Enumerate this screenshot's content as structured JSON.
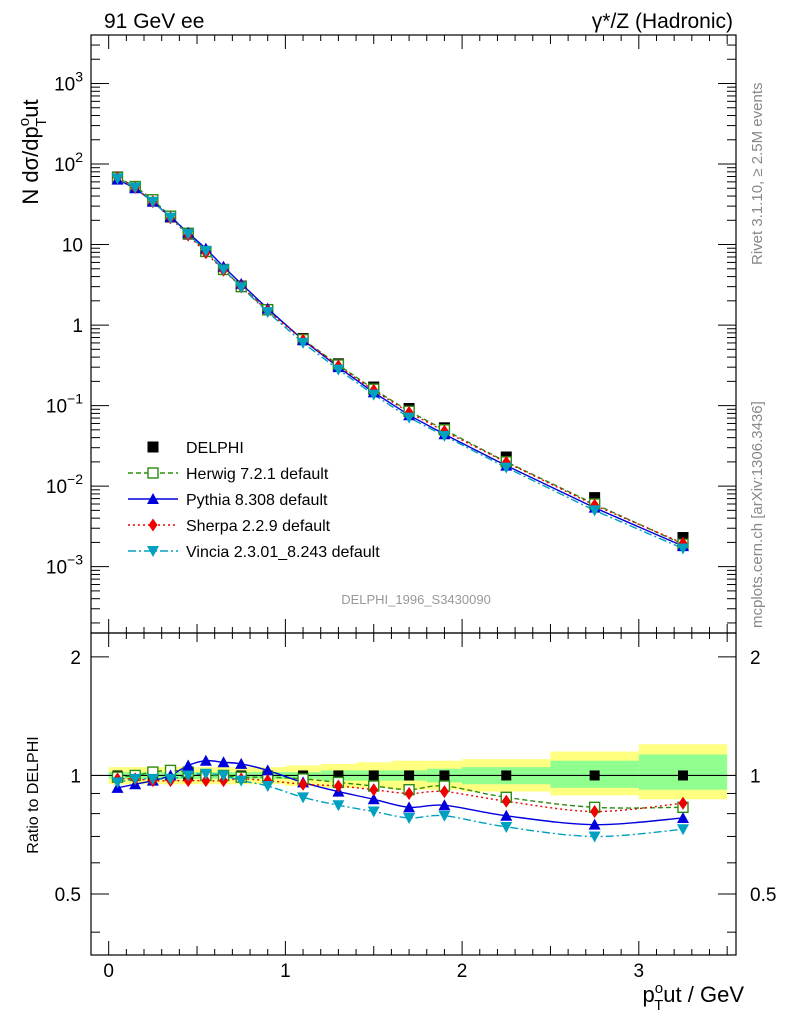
{
  "header": {
    "left": "91 GeV ee",
    "right": "γ*/Z (Hadronic)"
  },
  "side": {
    "rivet": "Rivet 3.1.10, ≥ 2.5M events",
    "mcplots": "mcplots.cern.ch [arXiv:1306.3436]"
  },
  "watermark": "DELPHI_1996_S3430090",
  "colors": {
    "data": "#000000",
    "herwig": "#2e8b11",
    "pythia": "#0000dd",
    "sherpa": "#ee0000",
    "vincia": "#00a0c0",
    "band_outer": "#ffff80",
    "band_inner": "#90ff90"
  },
  "chart_data": [
    {
      "type": "scatter",
      "panel": "main",
      "ylabel_main": "N dσ/dp",
      "ylabel_sup": "o",
      "ylabel_sub": "T",
      "ylabel_tail": "ut",
      "yscale": "log",
      "xlim": [
        -0.1,
        3.55
      ],
      "ylim": [
        0.00015,
        4000
      ],
      "ytick_labels": [
        "10-3",
        "10-2",
        "10-1",
        "1",
        "10",
        "102",
        "103"
      ],
      "x": [
        0.05,
        0.15,
        0.25,
        0.35,
        0.45,
        0.55,
        0.65,
        0.75,
        0.9,
        1.1,
        1.3,
        1.5,
        1.7,
        1.9,
        2.25,
        2.75,
        3.25
      ],
      "series": [
        {
          "name": "DELPHI",
          "key": "data",
          "values": [
            69,
            52,
            35,
            22,
            13.5,
            8.2,
            4.9,
            3.05,
            1.55,
            0.68,
            0.33,
            0.17,
            0.092,
            0.053,
            0.023,
            0.0072,
            0.0023
          ]
        },
        {
          "name": "Herwig 7.2.1 default",
          "key": "herwig",
          "values": [
            68,
            52.5,
            36,
            22.5,
            13.8,
            8.2,
            4.9,
            3.0,
            1.55,
            0.66,
            0.32,
            0.16,
            0.085,
            0.05,
            0.02,
            0.006,
            0.0019
          ]
        },
        {
          "name": "Pythia 8.308 default",
          "key": "pythia",
          "values": [
            64,
            50,
            34,
            22,
            14,
            8.9,
            5.3,
            3.25,
            1.6,
            0.65,
            0.3,
            0.146,
            0.076,
            0.044,
            0.018,
            0.0054,
            0.0018
          ]
        },
        {
          "name": "Sherpa 2.2.9 default",
          "key": "sherpa",
          "values": [
            68,
            51,
            34,
            21.4,
            13.1,
            7.9,
            4.8,
            2.98,
            1.5,
            0.65,
            0.31,
            0.155,
            0.082,
            0.048,
            0.0197,
            0.0058,
            0.00195
          ]
        },
        {
          "name": "Vincia 2.3.01_8.243 default",
          "key": "vincia",
          "values": [
            66,
            51,
            34,
            21.6,
            13.5,
            8.3,
            4.9,
            2.95,
            1.45,
            0.6,
            0.28,
            0.137,
            0.071,
            0.042,
            0.017,
            0.005,
            0.00168
          ]
        }
      ]
    },
    {
      "type": "line",
      "panel": "ratio",
      "ylabel": "Ratio to DELPHI",
      "xlabel": "p_T^o ut / GeV",
      "xlabel_main": "p",
      "xlabel_sup": "o",
      "xlabel_sub": "T",
      "xlabel_tail": "ut / GeV",
      "xlim": [
        -0.1,
        3.55
      ],
      "ylim": [
        0.35,
        2.3
      ],
      "ytick_labels": [
        "0.5",
        "1",
        "2"
      ],
      "xtick_labels": [
        "0",
        "1",
        "2",
        "3"
      ],
      "x": [
        0.05,
        0.15,
        0.25,
        0.35,
        0.45,
        0.55,
        0.65,
        0.75,
        0.9,
        1.1,
        1.3,
        1.5,
        1.7,
        1.9,
        2.25,
        2.75,
        3.25
      ],
      "x_bin_edges": [
        0.0,
        0.1,
        0.2,
        0.3,
        0.4,
        0.5,
        0.6,
        0.7,
        0.8,
        1.0,
        1.2,
        1.4,
        1.6,
        1.8,
        2.0,
        2.5,
        3.0,
        3.5
      ],
      "band_outer": [
        [
          0.95,
          1.05
        ],
        [
          0.95,
          1.05
        ],
        [
          0.95,
          1.05
        ],
        [
          0.95,
          1.05
        ],
        [
          0.95,
          1.05
        ],
        [
          0.95,
          1.05
        ],
        [
          0.95,
          1.05
        ],
        [
          0.95,
          1.05
        ],
        [
          0.95,
          1.05
        ],
        [
          0.94,
          1.06
        ],
        [
          0.93,
          1.07
        ],
        [
          0.93,
          1.08
        ],
        [
          0.92,
          1.09
        ],
        [
          0.92,
          1.09
        ],
        [
          0.91,
          1.1
        ],
        [
          0.89,
          1.15
        ],
        [
          0.87,
          1.2
        ]
      ],
      "band_inner": [
        [
          0.98,
          1.02
        ],
        [
          0.98,
          1.02
        ],
        [
          0.98,
          1.02
        ],
        [
          0.98,
          1.02
        ],
        [
          0.98,
          1.02
        ],
        [
          0.98,
          1.02
        ],
        [
          0.98,
          1.02
        ],
        [
          0.98,
          1.02
        ],
        [
          0.98,
          1.02
        ],
        [
          0.98,
          1.02
        ],
        [
          0.97,
          1.03
        ],
        [
          0.97,
          1.03
        ],
        [
          0.97,
          1.03
        ],
        [
          0.96,
          1.04
        ],
        [
          0.95,
          1.05
        ],
        [
          0.93,
          1.09
        ],
        [
          0.92,
          1.13
        ]
      ],
      "series": [
        {
          "name": "Herwig 7.2.1 default",
          "key": "herwig",
          "values": [
            0.99,
            1.0,
            1.02,
            1.03,
            1.02,
            1.0,
            1.0,
            0.99,
            0.99,
            0.98,
            0.96,
            0.94,
            0.92,
            0.94,
            0.88,
            0.83,
            0.83
          ]
        },
        {
          "name": "Pythia 8.308 default",
          "key": "pythia",
          "values": [
            0.93,
            0.95,
            0.97,
            1.0,
            1.06,
            1.09,
            1.08,
            1.07,
            1.03,
            0.96,
            0.91,
            0.87,
            0.83,
            0.84,
            0.79,
            0.75,
            0.78
          ]
        },
        {
          "name": "Sherpa 2.2.9 default",
          "key": "sherpa",
          "values": [
            0.98,
            0.98,
            0.97,
            0.97,
            0.97,
            0.97,
            0.97,
            0.98,
            0.97,
            0.95,
            0.94,
            0.92,
            0.9,
            0.91,
            0.86,
            0.81,
            0.85
          ]
        },
        {
          "name": "Vincia 2.3.01_8.243 default",
          "key": "vincia",
          "values": [
            0.96,
            0.98,
            0.98,
            0.98,
            1.0,
            1.01,
            1.0,
            0.97,
            0.94,
            0.88,
            0.84,
            0.81,
            0.78,
            0.79,
            0.74,
            0.7,
            0.73
          ]
        }
      ]
    }
  ]
}
